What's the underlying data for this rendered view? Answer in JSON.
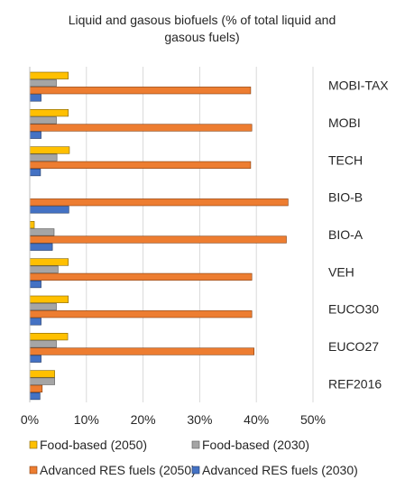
{
  "chart_data": {
    "type": "bar",
    "orientation": "horizontal",
    "title_lines": [
      "Liquid and gasous biofuels (% of total liquid and",
      "gasous fuels)"
    ],
    "categories": [
      "MOBI-TAX",
      "MOBI",
      "TECH",
      "BIO-B",
      "BIO-A",
      "VEH",
      "EUCO30",
      "EUCO27",
      "REF2016"
    ],
    "series": [
      {
        "name": "Food-based (2050)",
        "color": "#ffc000",
        "stroke": "#7f6000",
        "values": [
          6.8,
          6.8,
          7.0,
          0.0,
          0.8,
          6.8,
          6.8,
          6.7,
          4.4
        ]
      },
      {
        "name": "Food-based (2030)",
        "color": "#a5a5a5",
        "stroke": "#595959",
        "values": [
          4.7,
          4.7,
          4.8,
          0.0,
          4.3,
          5.0,
          4.7,
          4.7,
          4.4
        ]
      },
      {
        "name": "Advanced RES fuels (2050)",
        "color": "#ed7d31",
        "stroke": "#843c0c",
        "values": [
          39.0,
          39.2,
          39.0,
          45.6,
          45.3,
          39.2,
          39.2,
          39.6,
          2.2
        ]
      },
      {
        "name": "Advanced RES fuels (2030)",
        "color": "#4472c4",
        "stroke": "#203864",
        "values": [
          2.0,
          2.0,
          1.9,
          6.9,
          4.0,
          2.0,
          2.0,
          2.0,
          1.8
        ]
      }
    ],
    "xlim": [
      0,
      50
    ],
    "xticks": [
      0,
      10,
      20,
      30,
      40,
      50
    ],
    "xtick_labels": [
      "0%",
      "10%",
      "20%",
      "30%",
      "40%",
      "50%"
    ],
    "legend_position": "bottom",
    "grid": true
  }
}
